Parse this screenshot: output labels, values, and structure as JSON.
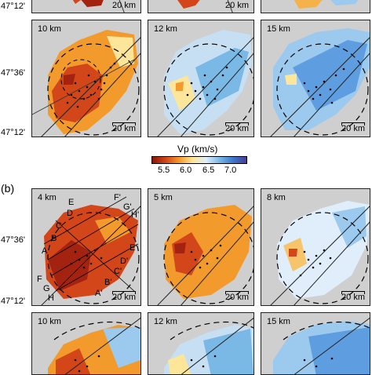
{
  "colorbar": {
    "title": "Vp (km/s)",
    "ticks": [
      "5.5",
      "6.0",
      "6.5",
      "7.0"
    ],
    "colors": [
      "#8a1505",
      "#d2461a",
      "#f39a2c",
      "#fde59a",
      "#dfeefa",
      "#7ab8e6",
      "#3d78c9",
      "#4a3a9b"
    ]
  },
  "latitudes": [
    "47°12'",
    "47°36'",
    "47°12'",
    "47°36'",
    "47°12'"
  ],
  "section_b": "(b)",
  "panels_a": [
    {
      "depth": "",
      "scale": "20 km"
    },
    {
      "depth": "",
      "scale": "20 km"
    },
    {
      "depth": "",
      "scale": ""
    },
    {
      "depth": "10 km",
      "scale": "20 km"
    },
    {
      "depth": "12 km",
      "scale": "20 km"
    },
    {
      "depth": "15 km",
      "scale": "20 km"
    }
  ],
  "panels_b": [
    {
      "depth": "4 km",
      "scale": "20 km"
    },
    {
      "depth": "5 km",
      "scale": "20 km"
    },
    {
      "depth": "8 km",
      "scale": "20 km"
    },
    {
      "depth": "10 km",
      "scale": ""
    },
    {
      "depth": "12 km",
      "scale": ""
    },
    {
      "depth": "15 km",
      "scale": ""
    }
  ],
  "profile_labels": {
    "left": [
      "D",
      "C",
      "B",
      "A",
      "F",
      "G",
      "H",
      "I"
    ],
    "right": [
      "E",
      "F'",
      "G'",
      "H'",
      "E'",
      "D'",
      "C'",
      "B'",
      "A'"
    ],
    "top_partial": [
      "H",
      "A"
    ]
  },
  "colors": {
    "background": "#cfcfcf",
    "slow": "#d2461a",
    "fast": "#7ab8e6"
  }
}
